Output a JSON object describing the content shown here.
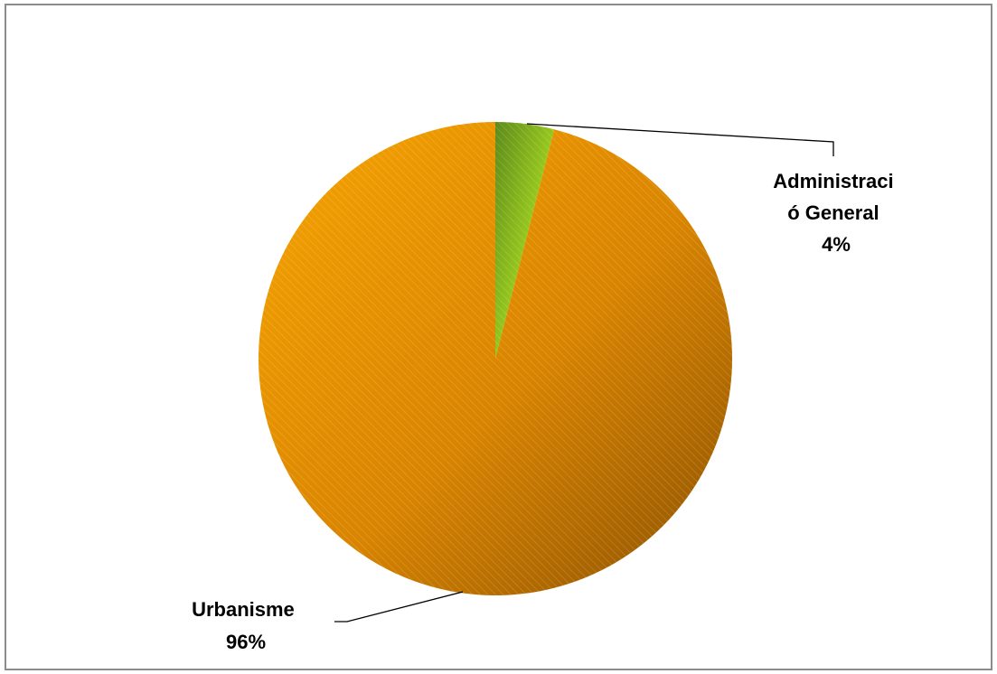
{
  "chart_data": {
    "type": "pie",
    "title": "",
    "categories": [
      "Administració General",
      "Urbanisme"
    ],
    "values": [
      4,
      96
    ],
    "unit": "%",
    "labels": [
      {
        "lines": [
          "Administraci",
          "ó General",
          "4%"
        ]
      },
      {
        "lines": [
          "Urbanisme",
          "96%"
        ]
      }
    ],
    "colors": [
      "#9ccc1c",
      "#f09800"
    ],
    "start_angle_deg": 0,
    "direction": "clockwise",
    "legend": "none",
    "grid": false
  }
}
